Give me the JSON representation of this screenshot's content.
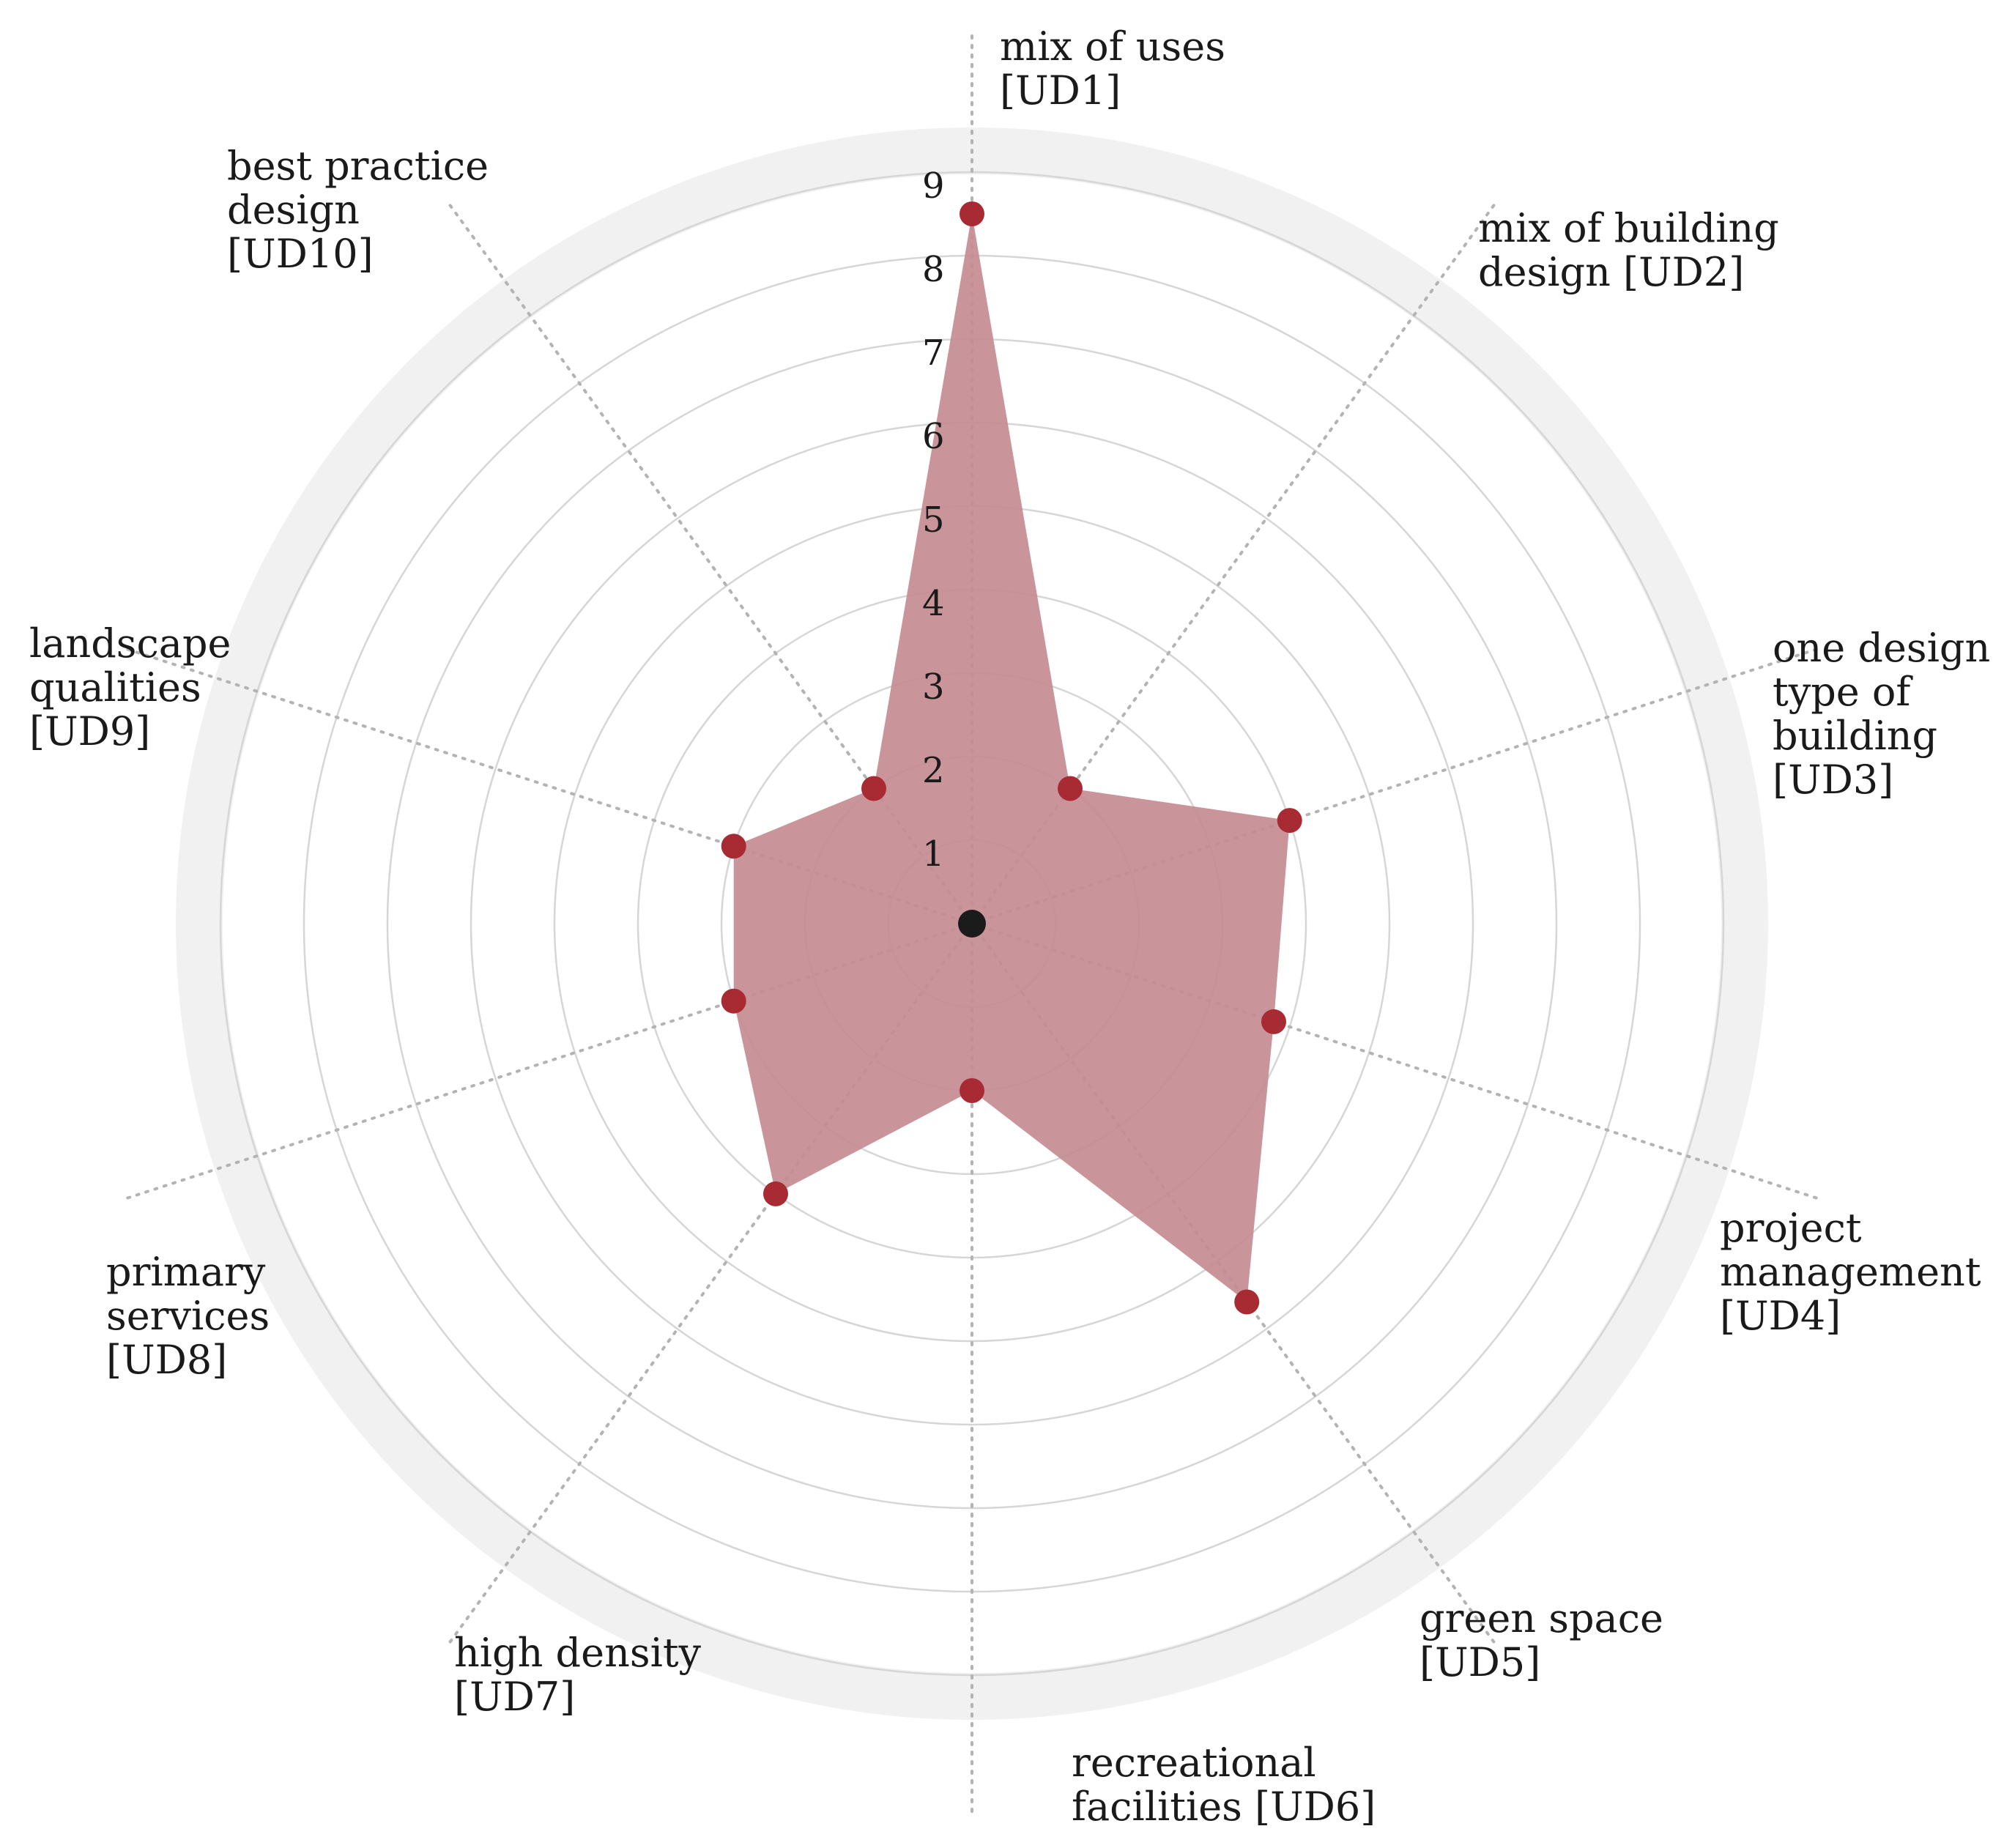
{
  "chart_data": {
    "type": "radar",
    "title": "",
    "colors": {
      "fill": "#c58c91",
      "marker": "#a82a33",
      "center": "#1b1b1b",
      "grid": "#d6d6d6",
      "outer_band": "#f1f1f1",
      "axis": "#b3b3b3"
    },
    "grid": true,
    "rlim": [
      0,
      9
    ],
    "ticks": [
      "1",
      "2",
      "3",
      "4",
      "5",
      "6",
      "7",
      "8",
      "9"
    ],
    "axes": [
      {
        "label": [
          "mix of uses",
          "[UD1]"
        ]
      },
      {
        "label": [
          "mix of building",
          "design [UD2]"
        ]
      },
      {
        "label": [
          "one design",
          "type of",
          "building",
          "[UD3]"
        ]
      },
      {
        "label": [
          "project",
          "management",
          "[UD4]"
        ]
      },
      {
        "label": [
          "green space",
          "[UD5]"
        ]
      },
      {
        "label": [
          "recreational",
          "facilities [UD6]"
        ]
      },
      {
        "label": [
          "high density",
          "[UD7]"
        ]
      },
      {
        "label": [
          "primary",
          "services",
          "[UD8]"
        ]
      },
      {
        "label": [
          "landscape",
          "qualities",
          "[UD9]"
        ]
      },
      {
        "label": [
          "best practice",
          "design",
          "[UD10]"
        ]
      }
    ],
    "values": [
      8.5,
      2.0,
      4.0,
      3.8,
      5.6,
      2.0,
      4.0,
      3.0,
      3.0,
      2.0
    ]
  }
}
